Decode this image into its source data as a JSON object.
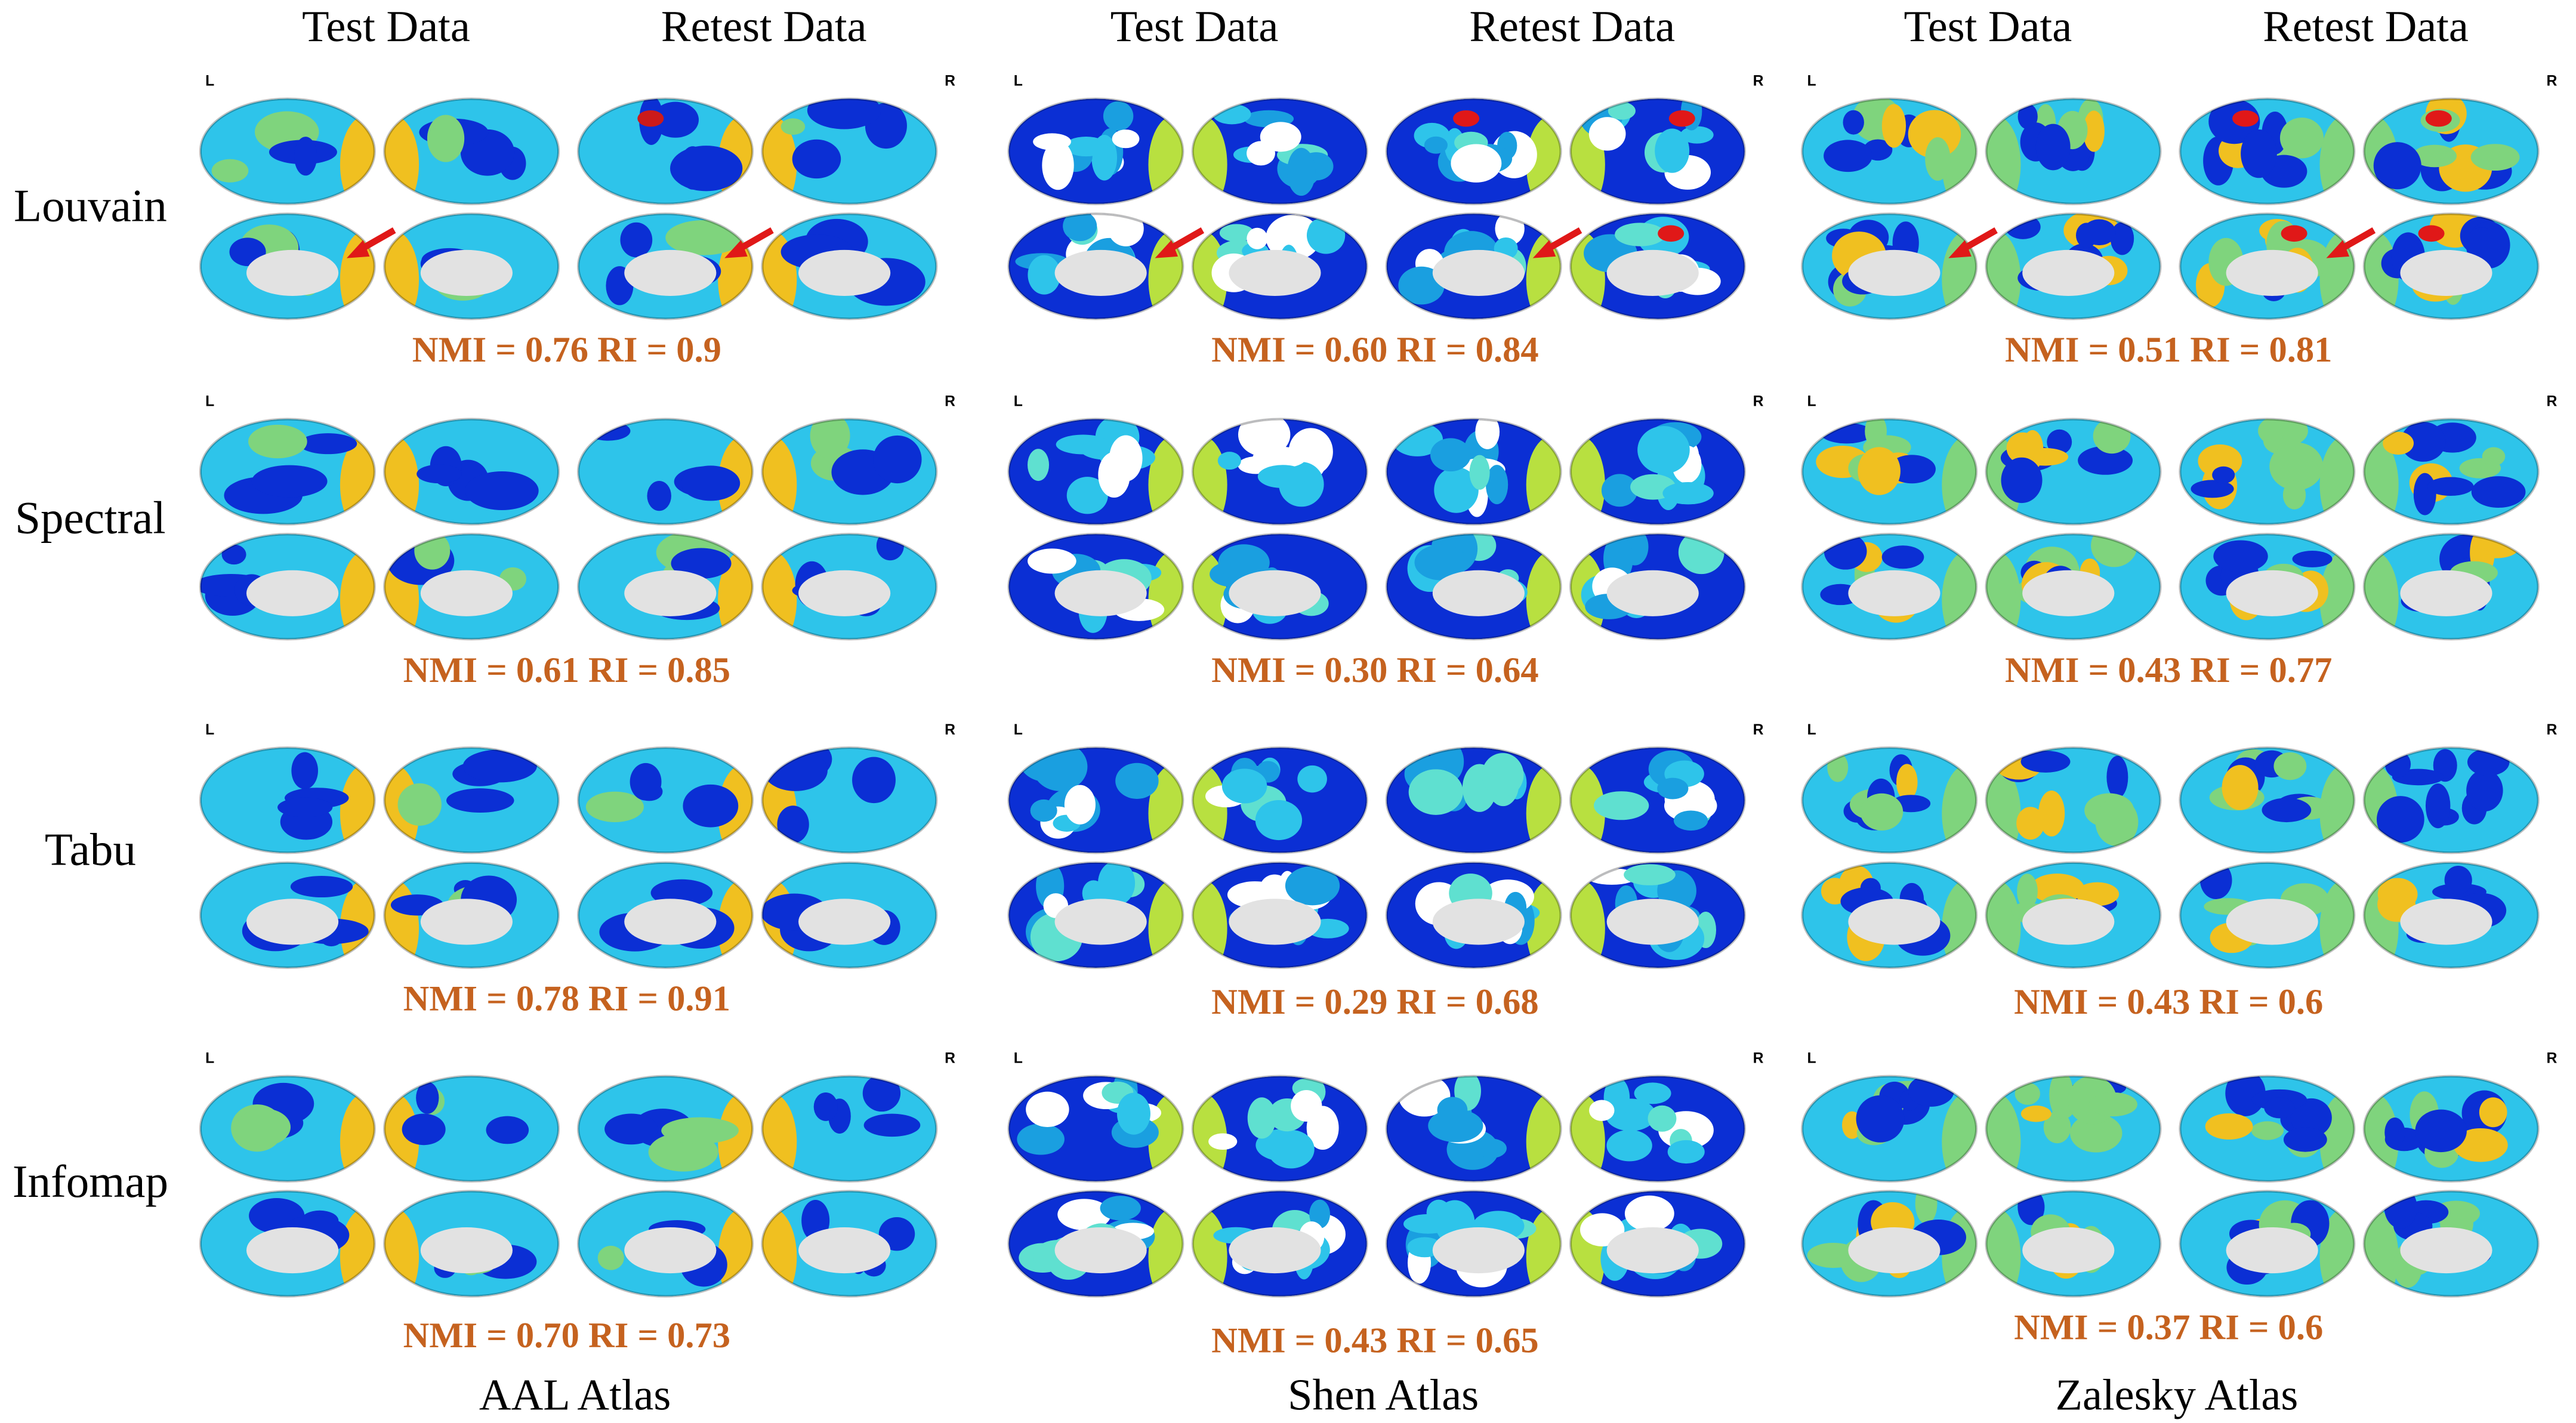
{
  "atlases": [
    {
      "name": "AAL Atlas",
      "columns": [
        "Test Data",
        "Retest Data"
      ],
      "results": [
        "NMI = 0.76 RI = 0.9",
        "NMI = 0.61 RI = 0.85",
        "NMI = 0.78 RI = 0.91",
        "NMI = 0.70 RI = 0.73"
      ]
    },
    {
      "name": "Shen Atlas",
      "columns": [
        "Test Data",
        "Retest Data"
      ],
      "results": [
        "NMI = 0.60 RI = 0.84",
        "NMI = 0.30 RI = 0.64",
        "NMI = 0.29 RI = 0.68",
        "NMI = 0.43 RI = 0.65"
      ]
    },
    {
      "name": "Zalesky Atlas",
      "columns": [
        "Test Data",
        "Retest Data"
      ],
      "results": [
        "NMI = 0.51 RI = 0.81",
        "NMI = 0.43 RI = 0.77",
        "NMI = 0.43 RI = 0.6",
        "NMI = 0.37 RI = 0.6"
      ]
    }
  ],
  "methods": [
    "Louvain",
    "Spectral",
    "Tabu",
    "Infomap"
  ],
  "hemisphere_labels": {
    "left": "L",
    "right": "R"
  }
}
